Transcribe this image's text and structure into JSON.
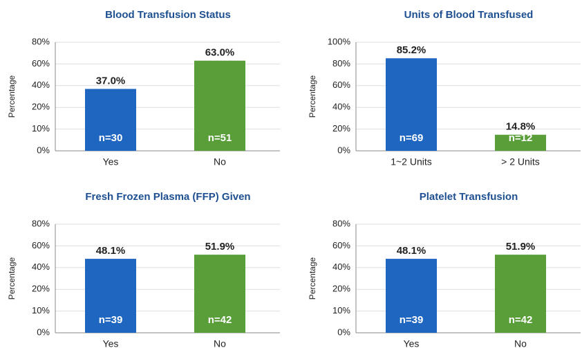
{
  "chart_data": [
    {
      "type": "bar",
      "title": "Blood Transfusion Status",
      "ylabel": "Percentage",
      "categories": [
        "Yes",
        "No"
      ],
      "values": [
        37.0,
        63.0
      ],
      "value_labels": [
        "37.0%",
        "63.0%"
      ],
      "n_labels": [
        "n=30",
        "n=51"
      ],
      "colors": [
        "#1f66c1",
        "#5a9e3a"
      ],
      "ylim": [
        0,
        80
      ],
      "yticks": [
        {
          "value": 0,
          "label": "0%"
        },
        {
          "value": 10,
          "label": "10%"
        },
        {
          "value": 20,
          "label": "20%"
        },
        {
          "value": 40,
          "label": "40%"
        },
        {
          "value": 60,
          "label": "60%"
        },
        {
          "value": 80,
          "label": "80%"
        }
      ],
      "grid": true
    },
    {
      "type": "bar",
      "title": "Units of Blood Transfused",
      "ylabel": "Percentage",
      "categories": [
        "1~2 Units",
        "> 2 Units"
      ],
      "values": [
        85.2,
        14.8
      ],
      "value_labels": [
        "85.2%",
        "14.8%"
      ],
      "n_labels": [
        "n=69",
        "n=12"
      ],
      "colors": [
        "#1f66c1",
        "#5a9e3a"
      ],
      "ylim": [
        0,
        100
      ],
      "yticks": [
        {
          "value": 0,
          "label": "0%"
        },
        {
          "value": 20,
          "label": "20%"
        },
        {
          "value": 40,
          "label": "40%"
        },
        {
          "value": 60,
          "label": "60%"
        },
        {
          "value": 80,
          "label": "80%"
        },
        {
          "value": 100,
          "label": "100%"
        }
      ],
      "grid": true
    },
    {
      "type": "bar",
      "title": "Fresh Frozen Plasma (FFP) Given",
      "ylabel": "Percentage",
      "categories": [
        "Yes",
        "No"
      ],
      "values": [
        48.1,
        51.9
      ],
      "value_labels": [
        "48.1%",
        "51.9%"
      ],
      "n_labels": [
        "n=39",
        "n=42"
      ],
      "colors": [
        "#1f66c1",
        "#5a9e3a"
      ],
      "ylim": [
        0,
        80
      ],
      "yticks": [
        {
          "value": 0,
          "label": "0%"
        },
        {
          "value": 10,
          "label": "10%"
        },
        {
          "value": 20,
          "label": "20%"
        },
        {
          "value": 40,
          "label": "40%"
        },
        {
          "value": 60,
          "label": "60%"
        },
        {
          "value": 80,
          "label": "80%"
        }
      ],
      "grid": true
    },
    {
      "type": "bar",
      "title": "Platelet Transfusion",
      "ylabel": "Percentage",
      "categories": [
        "Yes",
        "No"
      ],
      "values": [
        48.1,
        51.9
      ],
      "value_labels": [
        "48.1%",
        "51.9%"
      ],
      "n_labels": [
        "n=39",
        "n=42"
      ],
      "colors": [
        "#1f66c1",
        "#5a9e3a"
      ],
      "ylim": [
        0,
        80
      ],
      "yticks": [
        {
          "value": 0,
          "label": "0%"
        },
        {
          "value": 10,
          "label": "10%"
        },
        {
          "value": 20,
          "label": "20%"
        },
        {
          "value": 40,
          "label": "40%"
        },
        {
          "value": 60,
          "label": "60%"
        },
        {
          "value": 80,
          "label": "80%"
        }
      ],
      "grid": true
    }
  ]
}
